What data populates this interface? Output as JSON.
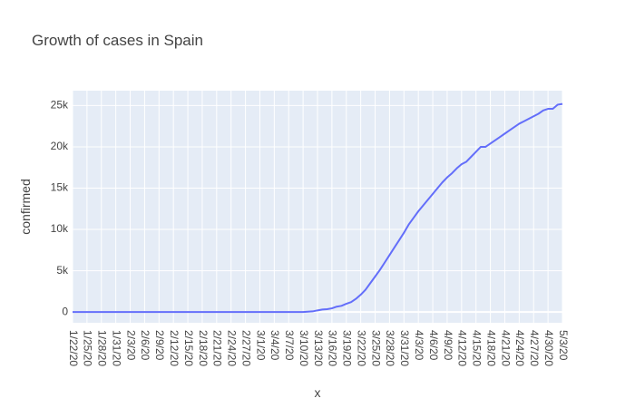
{
  "chart_data": {
    "type": "line",
    "title": "Growth of cases in Spain",
    "xlabel": "x",
    "ylabel": "confirmed",
    "ylim": [
      -1300,
      26800
    ],
    "grid": true,
    "colors": {
      "line": "#636efa",
      "plot_background": "#e5ecf6",
      "grid": "#ffffff",
      "text": "#444444"
    },
    "x_tick_labels": [
      "1/22/20",
      "1/25/20",
      "1/28/20",
      "1/31/20",
      "2/3/20",
      "2/6/20",
      "2/9/20",
      "2/12/20",
      "2/15/20",
      "2/18/20",
      "2/21/20",
      "2/24/20",
      "2/27/20",
      "3/1/20",
      "3/4/20",
      "3/7/20",
      "3/10/20",
      "3/13/20",
      "3/16/20",
      "3/19/20",
      "3/22/20",
      "3/25/20",
      "3/28/20",
      "3/31/20",
      "4/3/20",
      "4/6/20",
      "4/9/20",
      "4/12/20",
      "4/15/20",
      "4/18/20",
      "4/21/20",
      "4/24/20",
      "4/27/20",
      "4/30/20",
      "5/3/20"
    ],
    "y_ticks": [
      {
        "value": 0,
        "label": "0"
      },
      {
        "value": 5000,
        "label": "5k"
      },
      {
        "value": 10000,
        "label": "10k"
      },
      {
        "value": 15000,
        "label": "15k"
      },
      {
        "value": 20000,
        "label": "20k"
      },
      {
        "value": 25000,
        "label": "25k"
      }
    ],
    "series": [
      {
        "x": [
          "1/22/20",
          "1/23/20",
          "1/24/20",
          "1/25/20",
          "1/26/20",
          "1/27/20",
          "1/28/20",
          "1/29/20",
          "1/30/20",
          "1/31/20",
          "2/1/20",
          "2/2/20",
          "2/3/20",
          "2/4/20",
          "2/5/20",
          "2/6/20",
          "2/7/20",
          "2/8/20",
          "2/9/20",
          "2/10/20",
          "2/11/20",
          "2/12/20",
          "2/13/20",
          "2/14/20",
          "2/15/20",
          "2/16/20",
          "2/17/20",
          "2/18/20",
          "2/19/20",
          "2/20/20",
          "2/21/20",
          "2/22/20",
          "2/23/20",
          "2/24/20",
          "2/25/20",
          "2/26/20",
          "2/27/20",
          "2/28/20",
          "2/29/20",
          "3/1/20",
          "3/2/20",
          "3/3/20",
          "3/4/20",
          "3/5/20",
          "3/6/20",
          "3/7/20",
          "3/8/20",
          "3/9/20",
          "3/10/20",
          "3/11/20",
          "3/12/20",
          "3/13/20",
          "3/14/20",
          "3/15/20",
          "3/16/20",
          "3/17/20",
          "3/18/20",
          "3/19/20",
          "3/20/20",
          "3/21/20",
          "3/22/20",
          "3/23/20",
          "3/24/20",
          "3/25/20",
          "3/26/20",
          "3/27/20",
          "3/28/20",
          "3/29/20",
          "3/30/20",
          "3/31/20",
          "4/1/20",
          "4/2/20",
          "4/3/20",
          "4/4/20",
          "4/5/20",
          "4/6/20",
          "4/7/20",
          "4/8/20",
          "4/9/20",
          "4/10/20",
          "4/11/20",
          "4/12/20",
          "4/13/20",
          "4/14/20",
          "4/15/20",
          "4/16/20",
          "4/17/20",
          "4/18/20",
          "4/19/20",
          "4/20/20",
          "4/21/20",
          "4/22/20",
          "4/23/20",
          "4/24/20",
          "4/25/20",
          "4/26/20",
          "4/27/20",
          "4/28/20",
          "4/29/20",
          "4/30/20",
          "5/1/20",
          "5/2/20",
          "5/3/20"
        ],
        "y": [
          0,
          0,
          0,
          0,
          0,
          0,
          0,
          0,
          0,
          0,
          0,
          0,
          0,
          0,
          0,
          0,
          0,
          0,
          0,
          0,
          0,
          0,
          0,
          0,
          0,
          0,
          0,
          0,
          0,
          0,
          0,
          0,
          0,
          0,
          0,
          0,
          0,
          0,
          0,
          0,
          0,
          0,
          0,
          0,
          0,
          0,
          0,
          0,
          0,
          50,
          80,
          200,
          300,
          350,
          450,
          650,
          750,
          1000,
          1200,
          1600,
          2100,
          2700,
          3500,
          4300,
          5100,
          6000,
          6900,
          7800,
          8700,
          9600,
          10600,
          11400,
          12200,
          12900,
          13600,
          14300,
          15000,
          15700,
          16300,
          16800,
          17400,
          17900,
          18200,
          18800,
          19400,
          20000,
          20000,
          20400,
          20800,
          21200,
          21600,
          22000,
          22400,
          22800,
          23100,
          23400,
          23700,
          24000,
          24400,
          24600,
          24600,
          25100,
          25200
        ]
      }
    ]
  }
}
